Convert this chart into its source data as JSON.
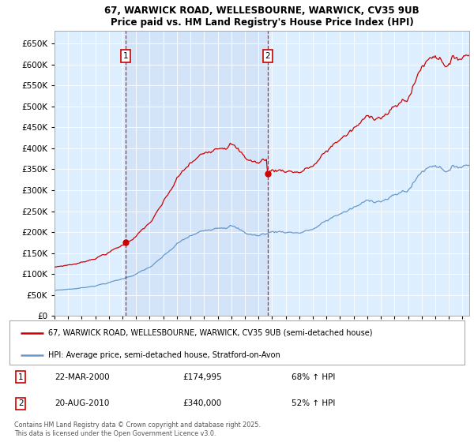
{
  "title_line1": "67, WARWICK ROAD, WELLESBOURNE, WARWICK, CV35 9UB",
  "title_line2": "Price paid vs. HM Land Registry's House Price Index (HPI)",
  "legend_line1": "67, WARWICK ROAD, WELLESBOURNE, WARWICK, CV35 9UB (semi-detached house)",
  "legend_line2": "HPI: Average price, semi-detached house, Stratford-on-Avon",
  "footnote": "Contains HM Land Registry data © Crown copyright and database right 2025.\nThis data is licensed under the Open Government Licence v3.0.",
  "transaction1_label": "1",
  "transaction1_date": "22-MAR-2000",
  "transaction1_price": "£174,995",
  "transaction1_hpi": "68% ↑ HPI",
  "transaction1_year": 2000.22,
  "transaction1_value": 174995,
  "transaction2_label": "2",
  "transaction2_date": "20-AUG-2010",
  "transaction2_price": "£340,000",
  "transaction2_hpi": "52% ↑ HPI",
  "transaction2_year": 2010.63,
  "transaction2_value": 340000,
  "red_color": "#cc0000",
  "blue_color": "#6699cc",
  "shade_color": "#ddeeff",
  "background_color": "#ddeeff",
  "ylim_min": 0,
  "ylim_max": 680000,
  "xlim_min": 1995.0,
  "xlim_max": 2025.5
}
